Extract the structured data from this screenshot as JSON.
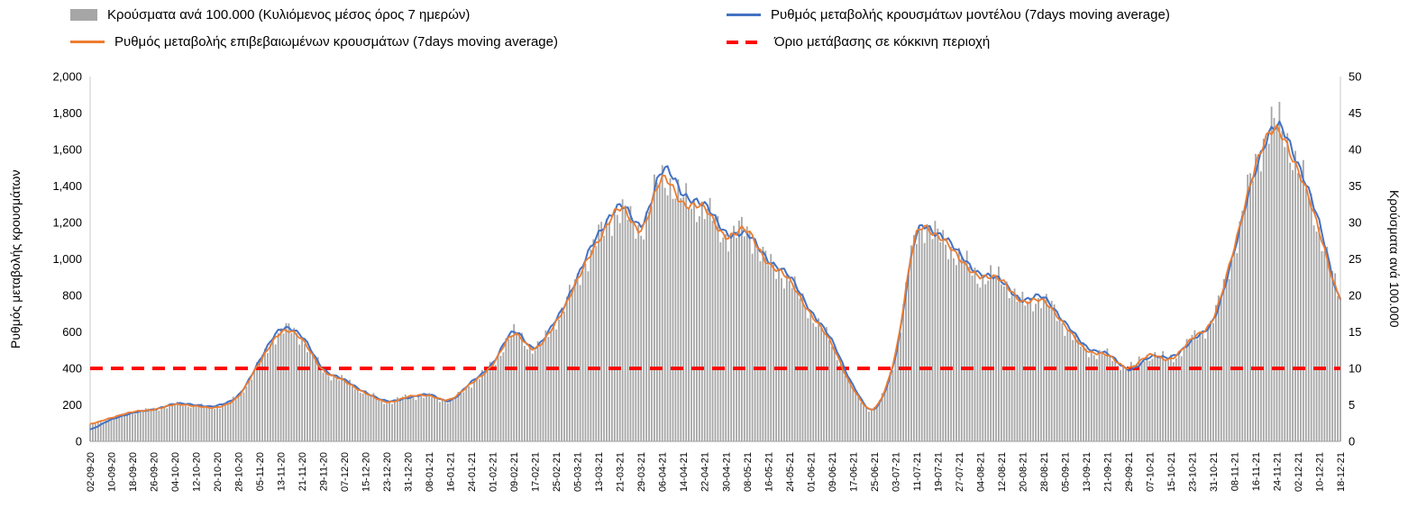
{
  "legend": {
    "items": [
      {
        "label": "Κρούσματα ανά 100.000 (Κυλιόμενος μέσος όρος 7 ημερών)",
        "type": "bar",
        "color": "#a6a6a6"
      },
      {
        "label": "Ρυθμός μεταβολής κρουσμάτων μοντέλου (7days moving average)",
        "type": "line",
        "color": "#4472c4"
      },
      {
        "label": "Ρυθμός μεταβολής επιβεβαιωμένων κρουσμάτων (7days moving average)",
        "type": "line",
        "color": "#ed7d31"
      },
      {
        "label": "Όριο μετάβασης σε κόκκινη περιοχή",
        "type": "dashed-line",
        "color": "#ff0000"
      }
    ]
  },
  "axes": {
    "left": {
      "title": "Ρυθμός μεταβολής κρουσμάτων",
      "tick_values": [
        0,
        200,
        400,
        600,
        800,
        1000,
        1200,
        1400,
        1600,
        1800,
        2000
      ],
      "tick_labels": [
        "0",
        "200",
        "400",
        "600",
        "800",
        "1,000",
        "1,200",
        "1,400",
        "1,600",
        "1,800",
        "2,000"
      ]
    },
    "right": {
      "title": "Κρούσματα ανά 100.000",
      "tick_values": [
        0,
        5,
        10,
        15,
        20,
        25,
        30,
        35,
        40,
        45,
        50
      ],
      "tick_labels": [
        "0",
        "5",
        "10",
        "15",
        "20",
        "25",
        "30",
        "35",
        "40",
        "45",
        "50"
      ]
    },
    "x": {
      "tick_labels": [
        "02-09-20",
        "10-09-20",
        "18-09-20",
        "26-09-20",
        "04-10-20",
        "12-10-20",
        "20-10-20",
        "28-10-20",
        "05-11-20",
        "13-11-20",
        "21-11-20",
        "29-11-20",
        "07-12-20",
        "15-12-20",
        "23-12-20",
        "31-12-20",
        "08-01-21",
        "16-01-21",
        "24-01-21",
        "01-02-21",
        "09-02-21",
        "17-02-21",
        "25-02-21",
        "05-03-21",
        "13-03-21",
        "21-03-21",
        "29-03-21",
        "06-04-21",
        "14-04-21",
        "22-04-21",
        "30-04-21",
        "08-05-21",
        "16-05-21",
        "24-05-21",
        "01-06-21",
        "09-06-21",
        "17-06-21",
        "25-06-21",
        "03-07-21",
        "11-07-21",
        "19-07-21",
        "27-07-21",
        "04-08-21",
        "12-08-21",
        "20-08-21",
        "28-08-21",
        "05-09-21",
        "13-09-21",
        "21-09-21",
        "29-09-21",
        "07-10-21",
        "15-10-21",
        "23-10-21",
        "31-10-21",
        "08-11-21",
        "16-11-21",
        "24-11-21",
        "02-12-21",
        "10-12-21",
        "18-12-21"
      ]
    }
  },
  "chart_data": {
    "type": "combo-bar-line",
    "sampling_note": "values estimated from the figure at each 8-day axis tick; underlying chart is daily",
    "x": [
      "02-09-20",
      "10-09-20",
      "18-09-20",
      "26-09-20",
      "04-10-20",
      "12-10-20",
      "20-10-20",
      "28-10-20",
      "05-11-20",
      "13-11-20",
      "21-11-20",
      "29-11-20",
      "07-12-20",
      "15-12-20",
      "23-12-20",
      "31-12-20",
      "08-01-21",
      "16-01-21",
      "24-01-21",
      "01-02-21",
      "09-02-21",
      "17-02-21",
      "25-02-21",
      "05-03-21",
      "13-03-21",
      "21-03-21",
      "29-03-21",
      "06-04-21",
      "14-04-21",
      "22-04-21",
      "30-04-21",
      "08-05-21",
      "16-05-21",
      "24-05-21",
      "01-06-21",
      "09-06-21",
      "17-06-21",
      "25-06-21",
      "03-07-21",
      "11-07-21",
      "19-07-21",
      "27-07-21",
      "04-08-21",
      "12-08-21",
      "20-08-21",
      "28-08-21",
      "05-09-21",
      "13-09-21",
      "21-09-21",
      "29-09-21",
      "07-10-21",
      "15-10-21",
      "23-10-21",
      "31-10-21",
      "08-11-21",
      "16-11-21",
      "24-11-21",
      "02-12-21",
      "10-12-21",
      "18-12-21"
    ],
    "series": [
      {
        "name": "Κρούσματα ανά 100.000 (Κυλιόμενος μέσος όρος 7 ημερών)",
        "type": "bar",
        "axis": "right",
        "color": "#a6a6a6",
        "values": [
          2.3,
          3.2,
          4,
          4.4,
          5,
          4.9,
          4.7,
          6.3,
          10.8,
          15.2,
          14,
          9.8,
          8.3,
          6.7,
          5.4,
          6.1,
          6.2,
          5.7,
          8,
          10.6,
          14.8,
          12.7,
          16.6,
          22.2,
          28,
          31.5,
          29.3,
          36,
          33,
          31.8,
          28.3,
          28.8,
          24.5,
          22,
          17.5,
          13.3,
          7.3,
          4.5,
          12,
          28.5,
          28,
          25.3,
          22.5,
          22.3,
          19,
          19.4,
          15.8,
          12.6,
          11.8,
          10.1,
          11.8,
          11.4,
          14,
          17,
          26.5,
          38,
          43.5,
          37.5,
          29,
          19.8
        ]
      },
      {
        "name": "Ρυθμός μεταβολής κρουσμάτων μοντέλου (7days moving average)",
        "type": "line",
        "axis": "left",
        "color": "#4472c4",
        "values": [
          65,
          120,
          155,
          175,
          205,
          200,
          195,
          255,
          440,
          620,
          570,
          400,
          335,
          270,
          220,
          240,
          255,
          225,
          325,
          430,
          600,
          515,
          670,
          900,
          1140,
          1290,
          1190,
          1480,
          1360,
          1290,
          1150,
          1130,
          1000,
          900,
          720,
          550,
          310,
          175,
          470,
          1130,
          1140,
          1030,
          920,
          880,
          775,
          790,
          650,
          520,
          480,
          395,
          460,
          465,
          550,
          670,
          1040,
          1500,
          1720,
          1530,
          1190,
          780
        ]
      },
      {
        "name": "Ρυθμός μεταβολής επιβεβαιωμένων κρουσμάτων (7days moving average)",
        "type": "line",
        "axis": "left",
        "color": "#ed7d31",
        "values": [
          95,
          130,
          160,
          175,
          200,
          195,
          185,
          250,
          430,
          600,
          555,
          390,
          330,
          265,
          215,
          245,
          250,
          230,
          320,
          420,
          590,
          505,
          660,
          880,
          1110,
          1270,
          1170,
          1430,
          1310,
          1270,
          1130,
          1150,
          980,
          880,
          700,
          530,
          290,
          180,
          480,
          1140,
          1120,
          1010,
          900,
          890,
          760,
          775,
          630,
          505,
          470,
          405,
          470,
          455,
          560,
          680,
          1060,
          1520,
          1700,
          1490,
          1150,
          790
        ]
      }
    ],
    "threshold": {
      "name": "Όριο μετάβασης σε κόκκινη περιοχή",
      "axis": "left",
      "value": 400,
      "right_axis_equivalent": 10,
      "color": "#ff0000",
      "style": "dashed"
    },
    "left_ylim": [
      0,
      2000
    ],
    "right_ylim": [
      0,
      50
    ],
    "grid": false,
    "legend_position": "top"
  }
}
